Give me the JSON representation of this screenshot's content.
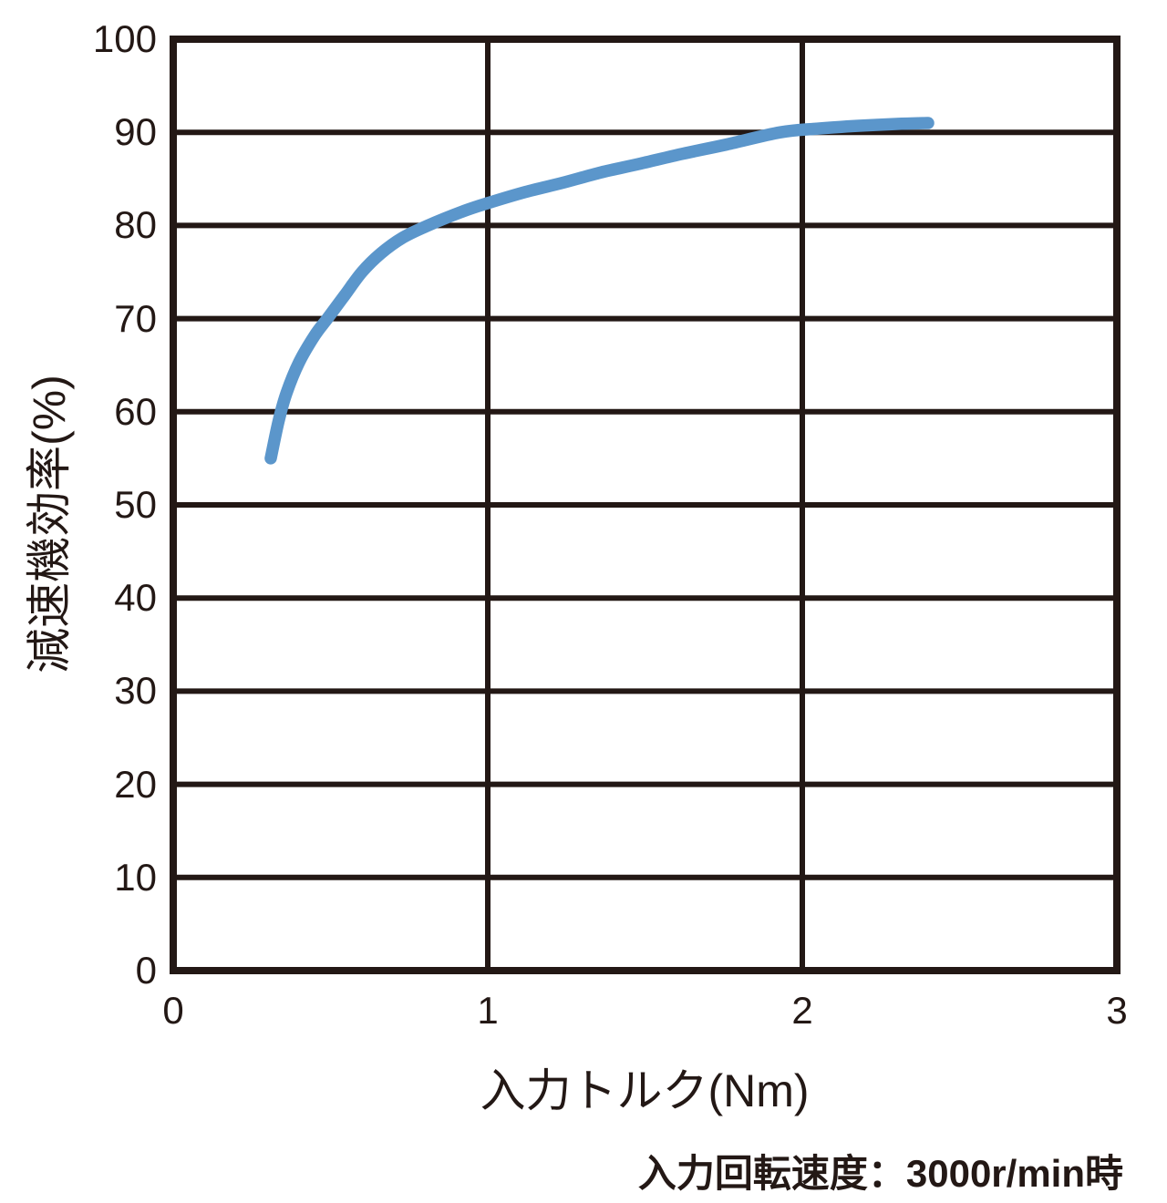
{
  "chart_data": {
    "type": "line",
    "title": "",
    "xlabel": "入力トルク(Nm)",
    "ylabel": "減速機効率(%)",
    "note": "入力回転速度：3000r/min時",
    "xlim": [
      0,
      3
    ],
    "ylim": [
      0,
      100
    ],
    "x_ticks": [
      0,
      1,
      2,
      3
    ],
    "y_ticks": [
      0,
      10,
      20,
      30,
      40,
      50,
      60,
      70,
      80,
      90,
      100
    ],
    "grid": true,
    "legend_position": "none",
    "colors": {
      "line": "#5B96CB",
      "axis": "#231815",
      "text": "#231815",
      "background": "#FFFFFF"
    },
    "series": [
      {
        "name": "減速機効率",
        "points": [
          [
            0.31,
            55.0
          ],
          [
            0.335,
            59.0
          ],
          [
            0.36,
            62.0
          ],
          [
            0.4,
            65.3
          ],
          [
            0.45,
            68.2
          ],
          [
            0.49,
            70.0
          ],
          [
            0.545,
            72.5
          ],
          [
            0.6,
            75.0
          ],
          [
            0.66,
            77.0
          ],
          [
            0.73,
            78.7
          ],
          [
            0.81,
            80.0
          ],
          [
            0.92,
            81.5
          ],
          [
            1.0,
            82.4
          ],
          [
            1.12,
            83.6
          ],
          [
            1.24,
            84.6
          ],
          [
            1.36,
            85.7
          ],
          [
            1.48,
            86.6
          ],
          [
            1.62,
            87.7
          ],
          [
            1.76,
            88.7
          ],
          [
            1.93,
            90.0
          ],
          [
            2.05,
            90.4
          ],
          [
            2.18,
            90.7
          ],
          [
            2.3,
            90.9
          ],
          [
            2.4,
            91.0
          ]
        ]
      }
    ]
  }
}
